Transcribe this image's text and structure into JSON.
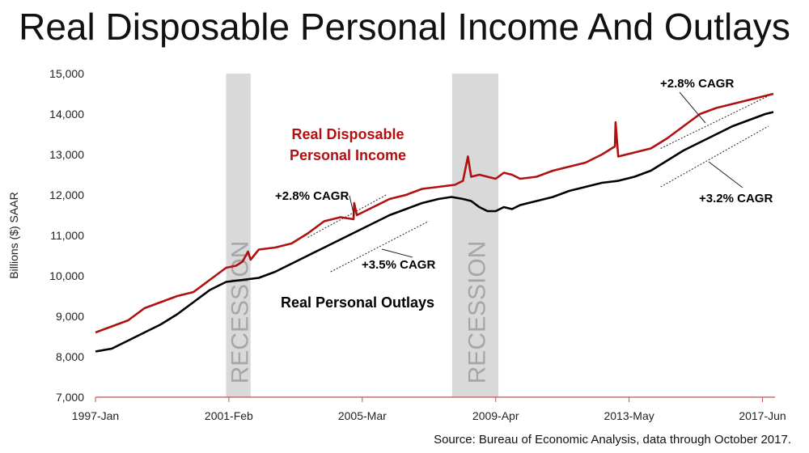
{
  "title": "Real Disposable Personal Income And Outlays",
  "source": "Source: Bureau of Economic Analysis, data through October 2017.",
  "colors": {
    "income": "#b01010",
    "outlays": "#000000",
    "recession": "#d9d9d9",
    "recession_text": "#a6a6a6",
    "axis": "#c0504d"
  },
  "chart_data": {
    "type": "line",
    "ylabel": "Billions ($) SAAR",
    "ylim": [
      7000,
      15000
    ],
    "yticks": [
      7000,
      8000,
      9000,
      10000,
      11000,
      12000,
      13000,
      14000,
      15000
    ],
    "ytick_labels": [
      "7,000",
      "8,000",
      "9,000",
      "10,000",
      "11,000",
      "12,000",
      "13,000",
      "14,000",
      "15,000"
    ],
    "xlim": [
      1997.0,
      2017.8
    ],
    "xticks": [
      1997.0,
      2001.083,
      2005.167,
      2009.25,
      2013.333,
      2017.417
    ],
    "xtick_labels": [
      "1997-Jan",
      "2001-Feb",
      "2005-Mar",
      "2009-Apr",
      "2013-May",
      "2017-Jun"
    ],
    "recessions": [
      {
        "label": "RECESSION",
        "start": 2001.0,
        "end": 2001.75
      },
      {
        "label": "RECESSION",
        "start": 2007.917,
        "end": 2009.333
      }
    ],
    "series": [
      {
        "name": "Real Disposable Personal Income",
        "x": [
          1997.0,
          1997.5,
          1998.0,
          1998.5,
          1999.0,
          1999.5,
          2000.0,
          2000.5,
          2001.0,
          2001.3,
          2001.5,
          2001.67,
          2001.75,
          2002.0,
          2002.5,
          2003.0,
          2003.5,
          2003.75,
          2004.0,
          2004.5,
          2004.9,
          2004.92,
          2005.0,
          2005.5,
          2006.0,
          2006.5,
          2007.0,
          2007.5,
          2008.0,
          2008.25,
          2008.4,
          2008.5,
          2008.75,
          2009.0,
          2009.25,
          2009.5,
          2009.75,
          2010.0,
          2010.5,
          2011.0,
          2011.5,
          2012.0,
          2012.5,
          2012.9,
          2012.92,
          2013.0,
          2013.5,
          2014.0,
          2014.5,
          2015.0,
          2015.5,
          2016.0,
          2016.5,
          2017.0,
          2017.5,
          2017.75
        ],
        "values": [
          8600,
          8750,
          8900,
          9200,
          9350,
          9500,
          9600,
          9900,
          10200,
          10250,
          10350,
          10600,
          10400,
          10650,
          10700,
          10800,
          11050,
          11200,
          11350,
          11450,
          11400,
          11800,
          11500,
          11700,
          11900,
          12000,
          12150,
          12200,
          12250,
          12350,
          12950,
          12450,
          12500,
          12450,
          12400,
          12550,
          12500,
          12400,
          12450,
          12600,
          12700,
          12800,
          13000,
          13200,
          13800,
          12950,
          13050,
          13150,
          13400,
          13700,
          14000,
          14150,
          14250,
          14350,
          14450,
          14500
        ]
      },
      {
        "name": "Real Personal Outlays",
        "x": [
          1997.0,
          1997.5,
          1998.0,
          1998.5,
          1999.0,
          1999.5,
          2000.0,
          2000.5,
          2001.0,
          2001.5,
          2002.0,
          2002.5,
          2003.0,
          2003.5,
          2004.0,
          2004.5,
          2005.0,
          2005.5,
          2006.0,
          2006.5,
          2007.0,
          2007.5,
          2007.9,
          2008.25,
          2008.5,
          2008.75,
          2009.0,
          2009.25,
          2009.5,
          2009.75,
          2010.0,
          2010.5,
          2011.0,
          2011.5,
          2012.0,
          2012.5,
          2013.0,
          2013.5,
          2014.0,
          2014.5,
          2015.0,
          2015.5,
          2016.0,
          2016.5,
          2017.0,
          2017.5,
          2017.75
        ],
        "values": [
          8130,
          8200,
          8400,
          8600,
          8800,
          9050,
          9350,
          9650,
          9850,
          9900,
          9950,
          10100,
          10300,
          10500,
          10700,
          10900,
          11100,
          11300,
          11500,
          11650,
          11800,
          11900,
          11950,
          11900,
          11850,
          11700,
          11600,
          11600,
          11700,
          11650,
          11750,
          11850,
          11950,
          12100,
          12200,
          12300,
          12350,
          12450,
          12600,
          12850,
          13100,
          13300,
          13500,
          13700,
          13850,
          14000,
          14050
        ]
      }
    ],
    "annotations": {
      "income_label_1": "Real Disposable",
      "income_label_2": "Personal Income",
      "outlays_label": "Real Personal Outlays",
      "cagr_income_early": "+2.8% CAGR",
      "cagr_outlays_early": "+3.5% CAGR",
      "cagr_income_late": "+2.8% CAGR",
      "cagr_outlays_late": "+3.2% CAGR"
    },
    "grid": false,
    "legend": "none"
  }
}
